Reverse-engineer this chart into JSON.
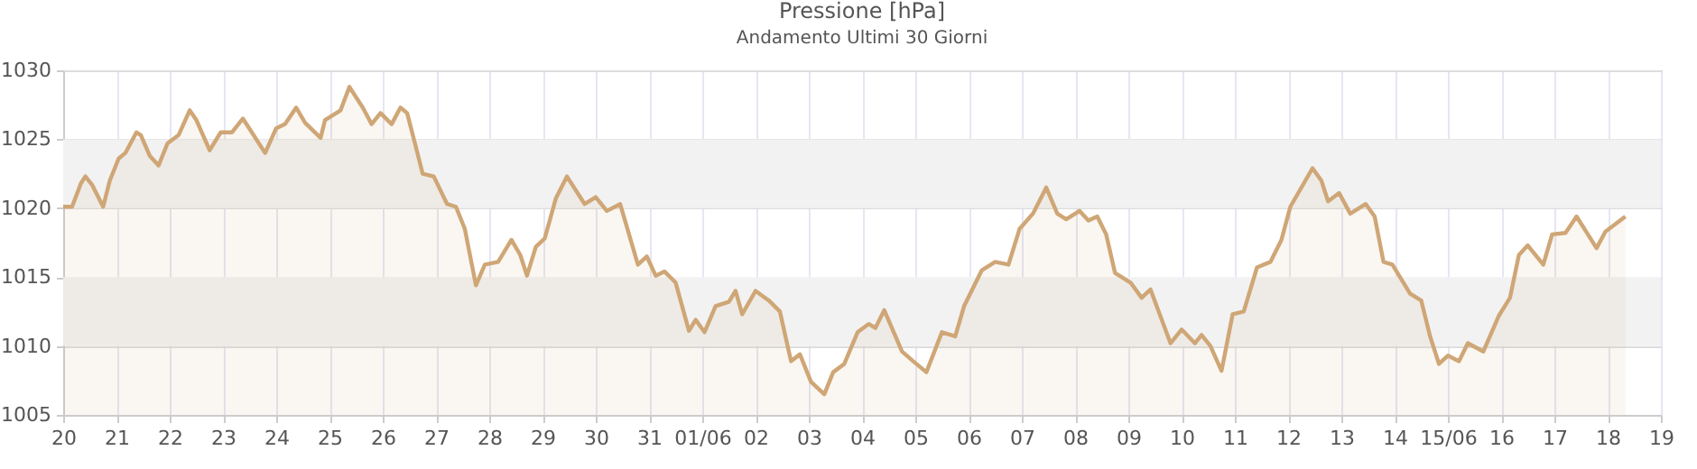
{
  "chart_data": {
    "type": "area",
    "title": "Pressione [hPa]",
    "subtitle": "Andamento Ultimi 30 Giorni",
    "x": [
      "--05-20T00:00",
      "--05-20T04:00",
      "--05-20T08:00",
      "--05-20T10:00",
      "--05-20T13:00",
      "--05-20T18:00",
      "--05-20T21:00",
      "--05-21T01:00",
      "--05-21T04:00",
      "--05-21T09:00",
      "--05-21T11:00",
      "--05-21T15:00",
      "--05-21T19:00",
      "--05-21T23:00",
      "--05-22T04:00",
      "--05-22T09:00",
      "--05-22T12:00",
      "--05-22T18:00",
      "--05-22T23:00",
      "--05-23T04:00",
      "--05-23T09:00",
      "--05-23T13:00",
      "--05-23T19:00",
      "--05-24T00:00",
      "--05-24T04:00",
      "--05-24T09:00",
      "--05-24T13:00",
      "--05-24T20:00",
      "--05-24T22:00",
      "--05-25T05:00",
      "--05-25T09:00",
      "--05-25T15:00",
      "--05-25T19:00",
      "--05-25T23:00",
      "--05-26T04:00",
      "--05-26T08:00",
      "--05-26T11:00",
      "--05-26T15:00",
      "--05-26T18:00",
      "--05-26T23:00",
      "--05-27T05:00",
      "--05-27T09:00",
      "--05-27T13:00",
      "--05-27T18:00",
      "--05-27T22:00",
      "--05-28T04:00",
      "--05-28T10:00",
      "--05-28T14:00",
      "--05-28T17:00",
      "--05-28T21:00",
      "--05-29T01:00",
      "--05-29T06:00",
      "--05-29T11:00",
      "--05-29T19:00",
      "--05-30T00:00",
      "--05-30T05:00",
      "--05-30T11:00",
      "--05-30T19:00",
      "--05-30T23:00",
      "--05-31T03:00",
      "--05-31T07:00",
      "--05-31T12:00",
      "--05-31T18:00",
      "--05-31T21:00",
      "--06-01T01:00",
      "--06-01T06:00",
      "--06-01T12:00",
      "--06-01T15:00",
      "--06-01T18:00",
      "--06-02T00:00",
      "--06-02T06:00",
      "--06-02T11:00",
      "--06-02T16:00",
      "--06-02T20:00",
      "--06-03T01:00",
      "--06-03T07:00",
      "--06-03T11:00",
      "--06-03T16:00",
      "--06-03T22:00",
      "--06-04T03:00",
      "--06-04T06:00",
      "--06-04T10:00",
      "--06-04T18:00",
      "--06-04T23:00",
      "--06-05T05:00",
      "--06-05T12:00",
      "--06-05T18:00",
      "--06-05T22:00",
      "--06-06T06:00",
      "--06-06T12:00",
      "--06-06T18:00",
      "--06-06T23:00",
      "--06-07T05:00",
      "--06-07T11:00",
      "--06-07T16:00",
      "--06-07T20:00",
      "--06-08T02:00",
      "--06-08T06:00",
      "--06-08T10:00",
      "--06-08T14:00",
      "--06-08T18:00",
      "--06-09T01:00",
      "--06-09T06:00",
      "--06-09T10:00",
      "--06-09T19:00",
      "--06-10T00:00",
      "--06-10T06:00",
      "--06-10T09:00",
      "--06-10T13:00",
      "--06-10T18:00",
      "--06-10T23:00",
      "--06-11T04:00",
      "--06-11T10:00",
      "--06-11T16:00",
      "--06-11T21:00",
      "--06-12T01:00",
      "--06-12T11:00",
      "--06-12T15:00",
      "--06-12T18:00",
      "--06-12T23:00",
      "--06-13T04:00",
      "--06-13T11:00",
      "--06-13T15:00",
      "--06-13T19:00",
      "--06-13T23:00",
      "--06-14T07:00",
      "--06-14T12:00",
      "--06-14T16:00",
      "--06-14T20:00",
      "--06-15T00:00",
      "--06-15T05:00",
      "--06-15T09:00",
      "--06-15T16:00",
      "--06-15T23:00",
      "--06-16T04:00",
      "--06-16T08:00",
      "--06-16T12:00",
      "--06-16T19:00",
      "--06-16T23:00",
      "--06-17T05:00",
      "--06-17T10:00",
      "--06-17T19:00",
      "--06-17T23:00",
      "--06-18T08:00"
    ],
    "series": [
      {
        "color": "#cfa676",
        "values": [
          1020.1,
          1020.1,
          1021.8,
          1022.3,
          1021.7,
          1020.1,
          1022.0,
          1023.6,
          1024.0,
          1025.5,
          1025.3,
          1023.8,
          1023.1,
          1024.7,
          1025.3,
          1027.1,
          1026.4,
          1024.2,
          1025.5,
          1025.5,
          1026.5,
          1025.5,
          1024.0,
          1025.8,
          1026.1,
          1027.3,
          1026.2,
          1025.1,
          1026.4,
          1027.1,
          1028.8,
          1027.3,
          1026.1,
          1026.9,
          1026.1,
          1027.3,
          1026.9,
          1024.4,
          1022.5,
          1022.3,
          1020.3,
          1020.1,
          1018.5,
          1014.4,
          1015.9,
          1016.1,
          1017.7,
          1016.6,
          1015.1,
          1017.2,
          1017.8,
          1020.7,
          1022.3,
          1020.3,
          1020.8,
          1019.8,
          1020.3,
          1015.9,
          1016.5,
          1015.1,
          1015.4,
          1014.6,
          1011.1,
          1011.9,
          1011.0,
          1012.9,
          1013.2,
          1014.0,
          1012.3,
          1014.0,
          1013.3,
          1012.5,
          1008.9,
          1009.4,
          1007.4,
          1006.5,
          1008.1,
          1008.7,
          1011.0,
          1011.6,
          1011.3,
          1012.6,
          1009.6,
          1008.9,
          1008.1,
          1011.0,
          1010.7,
          1012.9,
          1015.5,
          1016.1,
          1015.9,
          1018.5,
          1019.6,
          1021.5,
          1019.6,
          1019.2,
          1019.8,
          1019.1,
          1019.4,
          1018.1,
          1015.3,
          1014.6,
          1013.5,
          1014.1,
          1010.2,
          1011.2,
          1010.2,
          1010.8,
          1010.0,
          1008.2,
          1012.3,
          1012.5,
          1015.7,
          1016.1,
          1017.7,
          1020.1,
          1022.9,
          1022.0,
          1020.5,
          1021.1,
          1019.6,
          1020.3,
          1019.4,
          1016.1,
          1015.9,
          1013.8,
          1013.3,
          1010.7,
          1008.7,
          1009.3,
          1008.9,
          1010.2,
          1009.6,
          1012.2,
          1013.5,
          1016.6,
          1017.3,
          1015.9,
          1018.1,
          1018.2,
          1019.4,
          1017.1,
          1018.3,
          1019.4
        ]
      }
    ],
    "xlim": [
      "--05-20",
      "--06-19"
    ],
    "xticks": [
      {
        "value": "--05-20",
        "label": "20"
      },
      {
        "value": "--05-21",
        "label": "21"
      },
      {
        "value": "--05-22",
        "label": "22"
      },
      {
        "value": "--05-23",
        "label": "23"
      },
      {
        "value": "--05-24",
        "label": "24"
      },
      {
        "value": "--05-25",
        "label": "25"
      },
      {
        "value": "--05-26",
        "label": "26"
      },
      {
        "value": "--05-27",
        "label": "27"
      },
      {
        "value": "--05-28",
        "label": "28"
      },
      {
        "value": "--05-29",
        "label": "29"
      },
      {
        "value": "--05-30",
        "label": "30"
      },
      {
        "value": "--05-31",
        "label": "31"
      },
      {
        "value": "--06-01",
        "label": "01/06"
      },
      {
        "value": "--06-02",
        "label": "02"
      },
      {
        "value": "--06-03",
        "label": "03"
      },
      {
        "value": "--06-04",
        "label": "04"
      },
      {
        "value": "--06-05",
        "label": "05"
      },
      {
        "value": "--06-06",
        "label": "06"
      },
      {
        "value": "--06-07",
        "label": "07"
      },
      {
        "value": "--06-08",
        "label": "08"
      },
      {
        "value": "--06-09",
        "label": "09"
      },
      {
        "value": "--06-10",
        "label": "10"
      },
      {
        "value": "--06-11",
        "label": "11"
      },
      {
        "value": "--06-12",
        "label": "12"
      },
      {
        "value": "--06-13",
        "label": "13"
      },
      {
        "value": "--06-14",
        "label": "14"
      },
      {
        "value": "--06-15",
        "label": "15/06"
      },
      {
        "value": "--06-16",
        "label": "16"
      },
      {
        "value": "--06-17",
        "label": "17"
      },
      {
        "value": "--06-18",
        "label": "18"
      },
      {
        "value": "--06-19",
        "label": "19"
      }
    ],
    "ylim": [
      1005,
      1030
    ],
    "yticks": [
      1005,
      1010,
      1015,
      1020,
      1025,
      1030
    ],
    "bands": [
      {
        "axis": "y",
        "from": 1010,
        "to": 1015,
        "color": "#f2f2f2"
      },
      {
        "axis": "y",
        "from": 1020,
        "to": 1025,
        "color": "#f2f2f2"
      }
    ],
    "grid": true
  }
}
